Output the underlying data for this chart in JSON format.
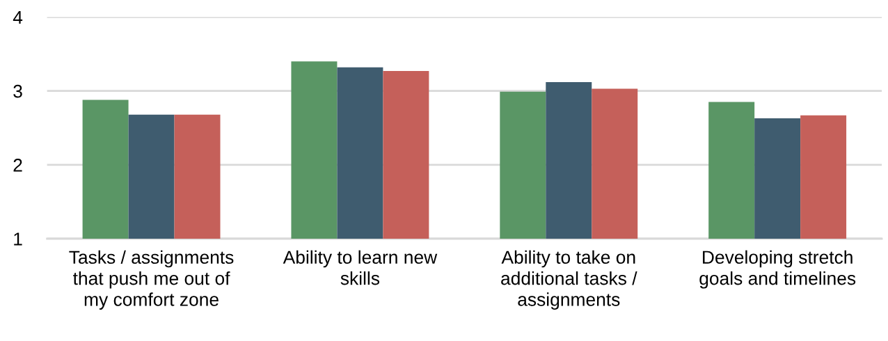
{
  "chart_data": {
    "type": "bar",
    "categories": [
      "Tasks / assignments\nthat push me out of\nmy comfort zone",
      "Ability to learn new\nskills",
      "Ability to take on\nadditional tasks /\nassignments",
      "Developing stretch\ngoals and timelines"
    ],
    "series": [
      {
        "color": "#5a9665",
        "values": [
          2.88,
          3.4,
          2.99,
          2.85
        ]
      },
      {
        "color": "#3f5c6f",
        "values": [
          2.68,
          3.32,
          3.12,
          2.63
        ]
      },
      {
        "color": "#c5605a",
        "values": [
          2.68,
          3.27,
          3.03,
          2.67
        ]
      }
    ],
    "ylim": [
      1,
      4
    ],
    "yticks": [
      1,
      2,
      3,
      4
    ],
    "grid": "y",
    "legend": false
  }
}
